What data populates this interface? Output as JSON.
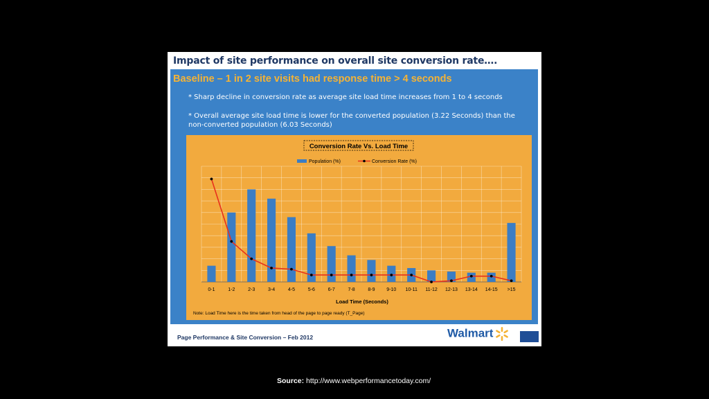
{
  "slide": {
    "heading": "Impact of site performance on overall site conversion rate….",
    "subheading": "Baseline – 1 in 2 site visits had response time > 4 seconds",
    "bullets": [
      "* Sharp decline in conversion rate as average site load time increases from 1 to 4 seconds",
      "* Overall average site load time is lower for the converted population (3.22 Seconds) than the non-converted population (6.03 Seconds)"
    ],
    "footer": "Page Performance & Site Conversion – Feb 2012",
    "logo_text": "Walmart",
    "logo_icon": "walmart-spark-icon"
  },
  "source": {
    "label": "Source:",
    "url": "http://www.webperformancetoday.com/"
  },
  "chart_data": {
    "type": "bar",
    "title": "Conversion Rate Vs. Load Time",
    "xlabel": "Load Time (Seconds)",
    "ylabel": "",
    "categories": [
      "0-1",
      "1-2",
      "2-3",
      "3-4",
      "4-5",
      "5-6",
      "6-7",
      "7-8",
      "8-9",
      "9-10",
      "10-11",
      "11-12",
      "12-13",
      "13-14",
      "14-15",
      ">15"
    ],
    "series": [
      {
        "name": "Population (%)",
        "kind": "bar",
        "color": "#3b7dc4",
        "values": [
          1.4,
          6.0,
          8.0,
          7.2,
          5.6,
          4.2,
          3.1,
          2.3,
          1.9,
          1.4,
          1.2,
          1.0,
          0.9,
          0.8,
          0.8,
          5.1
        ]
      },
      {
        "name": "Conversion Rate (%)",
        "kind": "line",
        "color": "#e8301c",
        "values": [
          8.9,
          3.5,
          2.0,
          1.2,
          1.1,
          0.6,
          0.6,
          0.6,
          0.6,
          0.6,
          0.6,
          0.0,
          0.1,
          0.5,
          0.5,
          0.1
        ]
      }
    ],
    "ylim": [
      0,
      10
    ],
    "grid": true,
    "legend": "top-center",
    "note": "Note: Load Time here is the time taken from head of the page to page ready (T_Page)"
  }
}
